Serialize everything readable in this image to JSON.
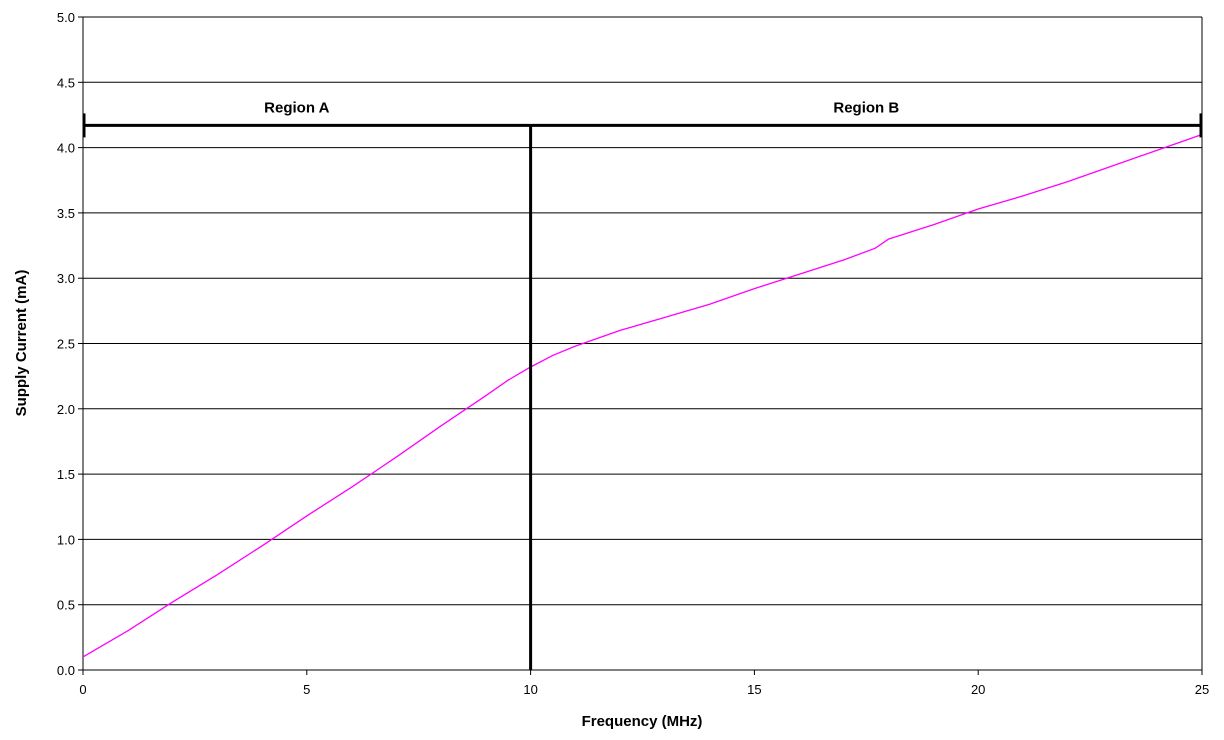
{
  "chart_data": {
    "type": "line",
    "title": "",
    "xlabel": "Frequency (MHz)",
    "ylabel": "Supply Current (mA)",
    "xlim": [
      0,
      25
    ],
    "ylim": [
      0,
      5
    ],
    "x_ticks": [
      "0",
      "5",
      "10",
      "15",
      "20",
      "25"
    ],
    "y_ticks": [
      "0.0",
      "0.5",
      "1.0",
      "1.5",
      "2.0",
      "2.5",
      "3.0",
      "3.5",
      "4.0",
      "4.5",
      "5.0"
    ],
    "grid": "horizontal",
    "series": [
      {
        "color": "#ff00ff",
        "x": [
          0,
          1,
          2,
          3,
          4,
          5,
          6,
          7,
          8,
          9,
          9.5,
          10,
          10.5,
          11,
          12,
          13,
          14,
          15,
          16,
          17,
          17.7,
          18,
          19,
          20,
          21,
          22,
          23,
          24,
          25
        ],
        "y": [
          0.1,
          0.3,
          0.52,
          0.73,
          0.95,
          1.18,
          1.4,
          1.63,
          1.87,
          2.1,
          2.22,
          2.32,
          2.41,
          2.48,
          2.6,
          2.7,
          2.8,
          2.92,
          3.03,
          3.14,
          3.23,
          3.3,
          3.41,
          3.53,
          3.63,
          3.74,
          3.86,
          3.98,
          4.1
        ]
      }
    ],
    "divider": {
      "x": 10,
      "color": "#000000"
    },
    "regions": [
      {
        "label": "Region A",
        "x_start": 0,
        "x_end": 10,
        "y": 4.17
      },
      {
        "label": "Region B",
        "x_start": 10,
        "x_end": 25,
        "y": 4.17
      }
    ]
  }
}
